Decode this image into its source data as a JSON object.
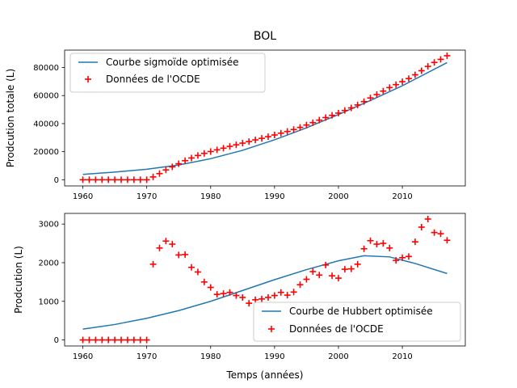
{
  "chart_data": [
    {
      "type": "line",
      "title": "BOL",
      "xlabel": "",
      "ylabel": "Prodcution totale (L)",
      "xlim": [
        1957.15,
        2019.85
      ],
      "ylim": [
        -4400,
        92400
      ],
      "xticks": [
        1960,
        1970,
        1980,
        1990,
        2000,
        2010
      ],
      "yticks": [
        0,
        20000,
        40000,
        60000,
        80000
      ],
      "ytick_labels": [
        "0",
        "20000",
        "40000",
        "60000",
        "80000"
      ],
      "legend_position": "upper-left",
      "grid": false,
      "series": [
        {
          "name": "Courbe sigmoïde optimisée",
          "kind": "line",
          "color": "#1f77b4",
          "x": [
            1960,
            1965,
            1970,
            1975,
            1980,
            1985,
            1990,
            1995,
            2000,
            2005,
            2010,
            2017
          ],
          "y": [
            3800,
            5500,
            7500,
            10500,
            15000,
            21000,
            28500,
            37000,
            46500,
            56500,
            67000,
            83500
          ]
        },
        {
          "name": "Données de l'OCDE",
          "kind": "scatter",
          "marker": "plus",
          "color": "#ff0000",
          "x": [
            1960,
            1961,
            1962,
            1963,
            1964,
            1965,
            1966,
            1967,
            1968,
            1969,
            1970,
            1971,
            1972,
            1973,
            1974,
            1975,
            1976,
            1977,
            1978,
            1979,
            1980,
            1981,
            1982,
            1983,
            1984,
            1985,
            1986,
            1987,
            1988,
            1989,
            1990,
            1991,
            1992,
            1993,
            1994,
            1995,
            1996,
            1997,
            1998,
            1999,
            2000,
            2001,
            2002,
            2003,
            2004,
            2005,
            2006,
            2007,
            2008,
            2009,
            2010,
            2011,
            2012,
            2013,
            2014,
            2015,
            2016,
            2017
          ],
          "y": [
            0,
            0,
            0,
            0,
            0,
            0,
            0,
            0,
            0,
            0,
            0,
            2000,
            4400,
            7000,
            9200,
            11400,
            13600,
            15500,
            17300,
            18800,
            20100,
            21300,
            22500,
            23800,
            24900,
            26100,
            27200,
            28400,
            29500,
            30700,
            31900,
            33200,
            34400,
            35800,
            37300,
            39000,
            40700,
            42500,
            44300,
            45900,
            47500,
            49400,
            51200,
            53300,
            55700,
            58300,
            60700,
            63200,
            65700,
            67800,
            69900,
            72100,
            74800,
            77700,
            80800,
            83600,
            85800,
            88400
          ]
        }
      ]
    },
    {
      "type": "line",
      "title": "",
      "xlabel": "Temps (années)",
      "ylabel": "Prodcution (L)",
      "xlim": [
        1957.15,
        2019.85
      ],
      "ylim": [
        -156,
        3276
      ],
      "xticks": [
        1960,
        1970,
        1980,
        1990,
        2000,
        2010
      ],
      "yticks": [
        0,
        1000,
        2000,
        3000
      ],
      "ytick_labels": [
        "0",
        "1000",
        "2000",
        "3000"
      ],
      "legend_position": "lower-right",
      "grid": false,
      "series": [
        {
          "name": "Courbe de Hubbert optimisée",
          "kind": "line",
          "color": "#1f77b4",
          "x": [
            1960,
            1965,
            1970,
            1975,
            1980,
            1985,
            1990,
            1995,
            2000,
            2004,
            2008,
            2012,
            2017
          ],
          "y": [
            280,
            400,
            560,
            760,
            1000,
            1280,
            1560,
            1820,
            2050,
            2180,
            2150,
            1980,
            1720
          ]
        },
        {
          "name": "Données de l'OCDE",
          "kind": "scatter",
          "marker": "plus",
          "color": "#ff0000",
          "x": [
            1960,
            1961,
            1962,
            1963,
            1964,
            1965,
            1966,
            1967,
            1968,
            1969,
            1970,
            1971,
            1972,
            1973,
            1974,
            1975,
            1976,
            1977,
            1978,
            1979,
            1980,
            1981,
            1982,
            1983,
            1984,
            1985,
            1986,
            1987,
            1988,
            1989,
            1990,
            1991,
            1992,
            1993,
            1994,
            1995,
            1996,
            1997,
            1998,
            1999,
            2000,
            2001,
            2002,
            2003,
            2004,
            2005,
            2006,
            2007,
            2008,
            2009,
            2010,
            2011,
            2012,
            2013,
            2014,
            2015,
            2016,
            2017
          ],
          "y": [
            0,
            0,
            0,
            0,
            0,
            0,
            0,
            0,
            0,
            0,
            0,
            1960,
            2380,
            2560,
            2480,
            2200,
            2210,
            1880,
            1760,
            1500,
            1360,
            1180,
            1200,
            1230,
            1150,
            1100,
            950,
            1040,
            1060,
            1100,
            1150,
            1230,
            1160,
            1240,
            1430,
            1570,
            1770,
            1680,
            1940,
            1660,
            1600,
            1830,
            1840,
            1960,
            2360,
            2570,
            2480,
            2500,
            2380,
            2060,
            2130,
            2160,
            2540,
            2920,
            3130,
            2780,
            2750,
            2580
          ]
        }
      ]
    }
  ]
}
